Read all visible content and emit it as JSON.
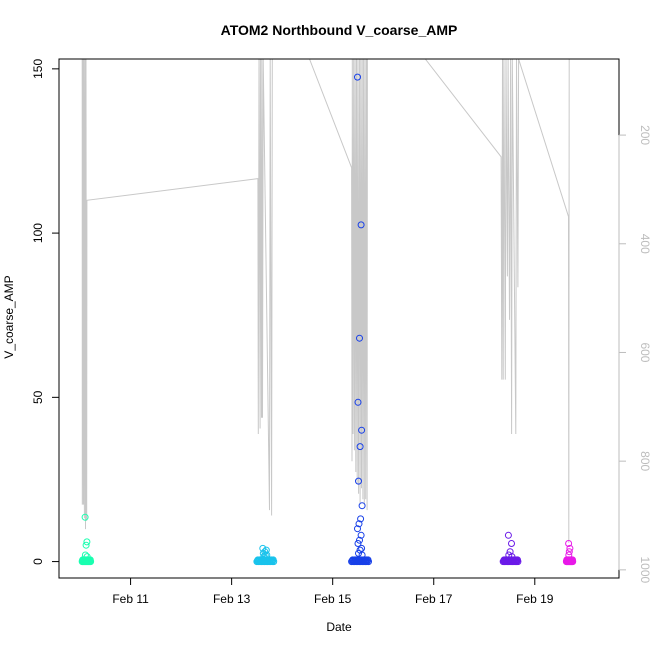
{
  "chart_data": {
    "type": "scatter",
    "title": "ATOM2 Northbound V_coarse_AMP",
    "xlabel": "Date",
    "ylabel": "V_coarse_AMP",
    "xlim": [
      "2016-02-09 14:00",
      "2016-02-20 16:00"
    ],
    "ylim": [
      -5,
      153
    ],
    "x_ticks": [
      {
        "date": "2016-02-11",
        "label": "Feb 11"
      },
      {
        "date": "2016-02-13",
        "label": "Feb 13"
      },
      {
        "date": "2016-02-15",
        "label": "Feb 15"
      },
      {
        "date": "2016-02-17",
        "label": "Feb 17"
      },
      {
        "date": "2016-02-19",
        "label": "Feb 19"
      }
    ],
    "y_ticks": [
      0,
      50,
      100,
      150
    ],
    "right_axis": {
      "reversed": true,
      "lim": [
        1015,
        60
      ],
      "ticks": [
        200,
        400,
        600,
        800,
        1000
      ],
      "color": "#bdbdbd"
    },
    "grid": false,
    "legend": "none",
    "clusters": [
      {
        "color": "#1affb0",
        "x_start": "2016-02-10 01:00",
        "x_end": "2016-02-10 05:00",
        "y_high": [
          13.5,
          6,
          5,
          2,
          1.5
        ]
      },
      {
        "color": "#19c3ec",
        "x_start": "2016-02-13 12:00",
        "x_end": "2016-02-13 20:00",
        "y_high": [
          4,
          3.5,
          3,
          2.5,
          2,
          2,
          1.5
        ]
      },
      {
        "color": "#1840e8",
        "x_start": "2016-02-15 09:00",
        "x_end": "2016-02-15 17:00",
        "y_high": [
          147.5,
          102.5,
          68,
          48.5,
          40,
          35,
          24.5,
          17,
          13,
          11.5,
          10,
          8,
          6.5,
          5.5,
          4,
          3.5,
          2.5,
          2
        ]
      },
      {
        "color": "#6a1ae8",
        "x_start": "2016-02-18 09:00",
        "x_end": "2016-02-18 16:00",
        "y_high": [
          8,
          5.5,
          3,
          2,
          1.5
        ]
      },
      {
        "color": "#e81ae8",
        "x_start": "2016-02-19 15:00",
        "x_end": "2016-02-19 18:00",
        "y_high": [
          5.5,
          4,
          3,
          2
        ]
      }
    ],
    "secondary_series": {
      "name": "",
      "color": "#c8c8c8",
      "points": [
        [
          "2016-02-10 01:00",
          60
        ],
        [
          "2016-02-10 01:05",
          880
        ],
        [
          "2016-02-10 01:20",
          60
        ],
        [
          "2016-02-10 01:35",
          880
        ],
        [
          "2016-02-10 01:50",
          60
        ],
        [
          "2016-02-10 02:05",
          905
        ],
        [
          "2016-02-10 02:20",
          60
        ],
        [
          "2016-02-10 02:35",
          925
        ],
        [
          "2016-02-10 02:50",
          60
        ],
        [
          "2016-02-10 03:00",
          900
        ],
        [
          "2016-02-10 03:10",
          910
        ],
        [
          "2016-02-10 03:15",
          320
        ],
        [
          "2016-02-13 12:30",
          280
        ],
        [
          "2016-02-13 12:40",
          750
        ],
        [
          "2016-02-13 13:00",
          60
        ],
        [
          "2016-02-13 13:30",
          740
        ],
        [
          "2016-02-13 13:40",
          60
        ],
        [
          "2016-02-13 14:10",
          720
        ],
        [
          "2016-02-13 14:20",
          60
        ],
        [
          "2016-02-13 14:40",
          720
        ],
        [
          "2016-02-13 15:00",
          60
        ],
        [
          "2016-02-13 18:00",
          890
        ],
        [
          "2016-02-13 18:20",
          60
        ],
        [
          "2016-02-13 19:00",
          900
        ],
        [
          "2016-02-13 19:20",
          60
        ],
        [
          "2016-02-14 13:00",
          60
        ],
        [
          "2016-02-15 09:00",
          260
        ],
        [
          "2016-02-15 09:10",
          800
        ],
        [
          "2016-02-15 09:20",
          60
        ],
        [
          "2016-02-15 09:40",
          750
        ],
        [
          "2016-02-15 10:00",
          60
        ],
        [
          "2016-02-15 10:20",
          780
        ],
        [
          "2016-02-15 10:40",
          60
        ],
        [
          "2016-02-15 11:00",
          820
        ],
        [
          "2016-02-15 11:20",
          60
        ],
        [
          "2016-02-15 11:40",
          840
        ],
        [
          "2016-02-15 12:00",
          60
        ],
        [
          "2016-02-15 12:20",
          860
        ],
        [
          "2016-02-15 12:40",
          60
        ],
        [
          "2016-02-15 13:00",
          880
        ],
        [
          "2016-02-15 13:20",
          60
        ],
        [
          "2016-02-15 13:40",
          850
        ],
        [
          "2016-02-15 14:00",
          60
        ],
        [
          "2016-02-15 14:20",
          870
        ],
        [
          "2016-02-15 14:40",
          60
        ],
        [
          "2016-02-15 15:00",
          880
        ],
        [
          "2016-02-15 15:20",
          60
        ],
        [
          "2016-02-15 15:40",
          870
        ],
        [
          "2016-02-15 16:00",
          60
        ],
        [
          "2016-02-15 16:20",
          890
        ],
        [
          "2016-02-15 16:30",
          60
        ],
        [
          "2016-02-16 20:00",
          60
        ],
        [
          "2016-02-18 08:00",
          240
        ],
        [
          "2016-02-18 08:20",
          650
        ],
        [
          "2016-02-18 08:40",
          60
        ],
        [
          "2016-02-18 09:00",
          650
        ],
        [
          "2016-02-18 09:20",
          60
        ],
        [
          "2016-02-18 10:00",
          650
        ],
        [
          "2016-02-18 10:20",
          60
        ],
        [
          "2016-02-18 11:00",
          460
        ],
        [
          "2016-02-18 11:20",
          60
        ],
        [
          "2016-02-18 12:00",
          540
        ],
        [
          "2016-02-18 12:30",
          60
        ],
        [
          "2016-02-18 13:00",
          750
        ],
        [
          "2016-02-18 13:20",
          60
        ],
        [
          "2016-02-18 15:00",
          750
        ],
        [
          "2016-02-18 15:20",
          60
        ],
        [
          "2016-02-18 16:00",
          480
        ],
        [
          "2016-02-18 16:20",
          60
        ],
        [
          "2016-02-19 16:00",
          350
        ],
        [
          "2016-02-19 16:10",
          950
        ],
        [
          "2016-02-19 16:20",
          60
        ]
      ]
    }
  }
}
